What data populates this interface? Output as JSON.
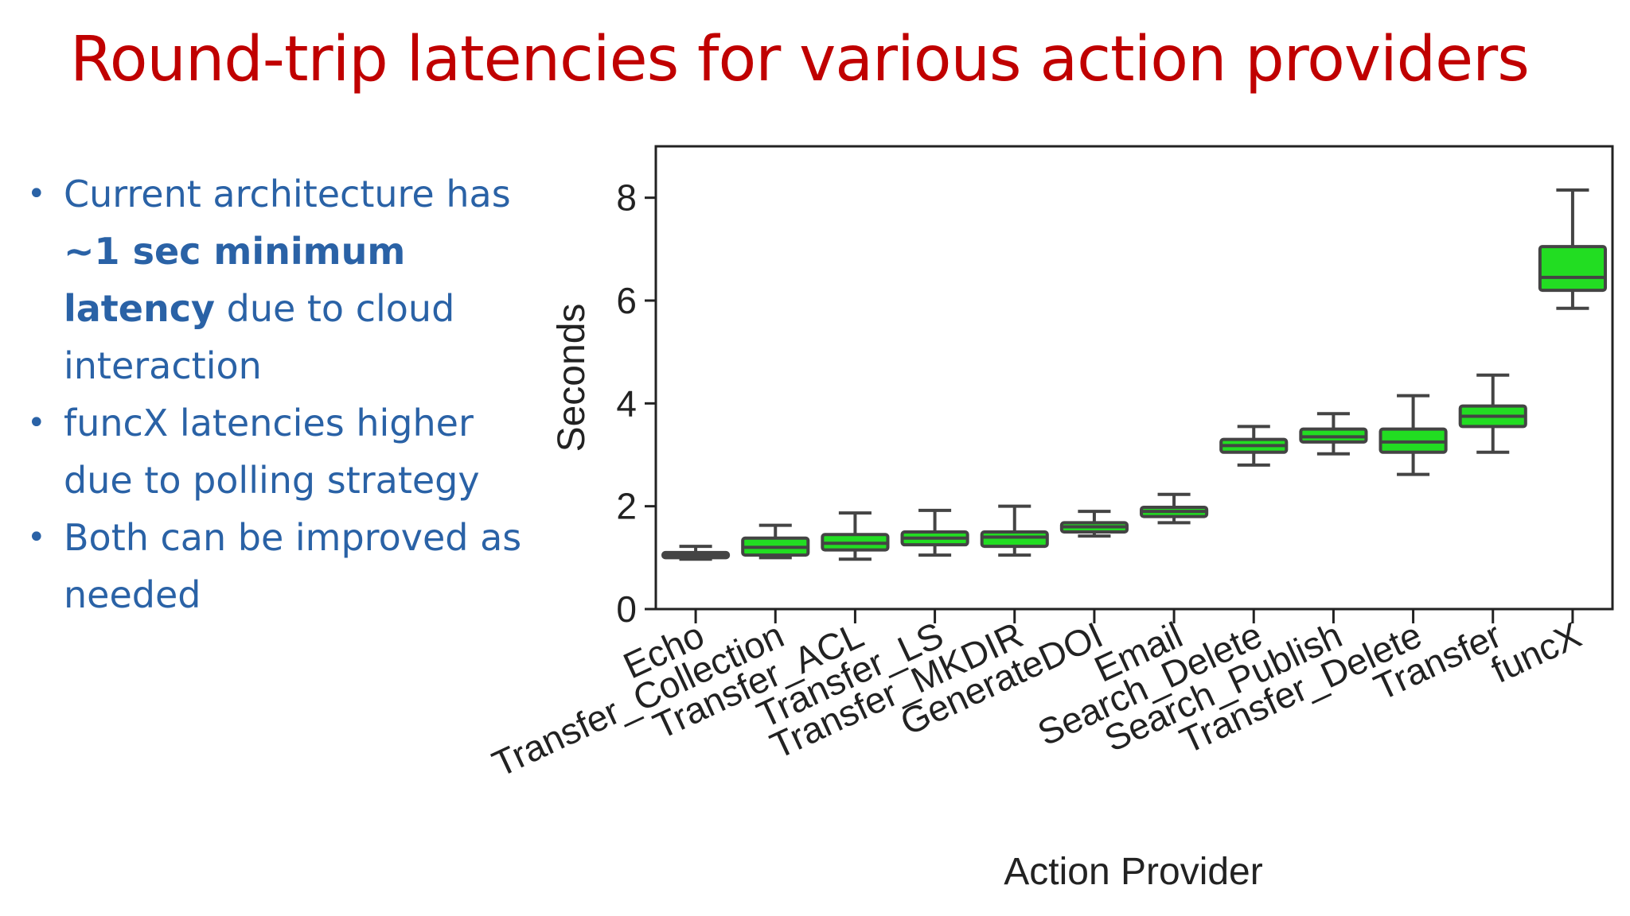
{
  "slide": {
    "title": "Round-trip latencies for various action providers",
    "bullets": [
      {
        "pre": "Current architecture has ",
        "bold": "~1 sec minimum latency",
        "post": " due to cloud interaction"
      },
      {
        "pre": "funcX latencies higher due to polling strategy",
        "bold": "",
        "post": ""
      },
      {
        "pre": "Both can be improved as needed",
        "bold": "",
        "post": ""
      }
    ]
  },
  "chart_data": {
    "type": "box",
    "xlabel": "Action Provider",
    "ylabel": "Seconds",
    "ylim": [
      0,
      9
    ],
    "yticks": [
      0,
      2,
      4,
      6,
      8
    ],
    "box_color": "#22dd22",
    "line_color": "#444444",
    "categories": [
      "Echo",
      "Transfer_Collection",
      "Transfer_ACL",
      "Transfer_LS",
      "Transfer_MKDIR",
      "GenerateDOI",
      "Email",
      "Search_Delete",
      "Search_Publish",
      "Transfer_Delete",
      "Transfer",
      "funcX"
    ],
    "boxes": [
      {
        "min": 0.97,
        "q1": 1.0,
        "median": 1.05,
        "q3": 1.1,
        "max": 1.22
      },
      {
        "min": 1.0,
        "q1": 1.05,
        "median": 1.2,
        "q3": 1.38,
        "max": 1.63
      },
      {
        "min": 0.97,
        "q1": 1.15,
        "median": 1.28,
        "q3": 1.45,
        "max": 1.87
      },
      {
        "min": 1.05,
        "q1": 1.25,
        "median": 1.38,
        "q3": 1.5,
        "max": 1.92
      },
      {
        "min": 1.05,
        "q1": 1.22,
        "median": 1.4,
        "q3": 1.5,
        "max": 2.0
      },
      {
        "min": 1.42,
        "q1": 1.5,
        "median": 1.6,
        "q3": 1.68,
        "max": 1.9
      },
      {
        "min": 1.68,
        "q1": 1.8,
        "median": 1.9,
        "q3": 1.98,
        "max": 2.23
      },
      {
        "min": 2.8,
        "q1": 3.05,
        "median": 3.18,
        "q3": 3.3,
        "max": 3.55
      },
      {
        "min": 3.02,
        "q1": 3.25,
        "median": 3.35,
        "q3": 3.5,
        "max": 3.8
      },
      {
        "min": 2.62,
        "q1": 3.05,
        "median": 3.25,
        "q3": 3.5,
        "max": 4.15
      },
      {
        "min": 3.05,
        "q1": 3.55,
        "median": 3.75,
        "q3": 3.95,
        "max": 4.55
      },
      {
        "min": 5.85,
        "q1": 6.2,
        "median": 6.45,
        "q3": 7.05,
        "max": 8.15
      }
    ]
  }
}
